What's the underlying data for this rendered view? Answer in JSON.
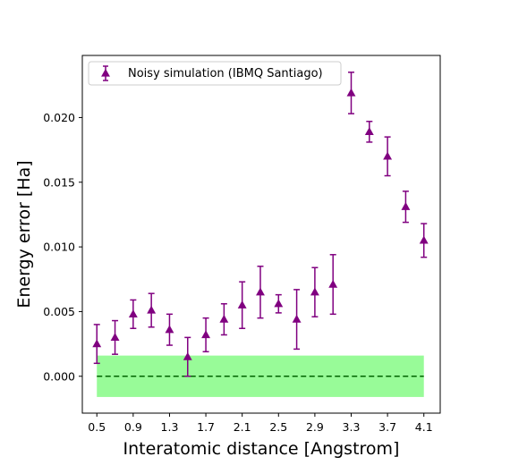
{
  "chart_data": {
    "type": "scatter",
    "xlabel": "Interatomic distance [Angstrom]",
    "ylabel": "Energy error [Ha]",
    "xlim": [
      0.34,
      4.28
    ],
    "ylim": [
      -0.00285,
      0.0248
    ],
    "xticks": [
      "0.5",
      "0.9",
      "1.3",
      "1.7",
      "2.1",
      "2.5",
      "2.9",
      "3.3",
      "3.7",
      "4.1"
    ],
    "yticks": [
      "0.000",
      "0.005",
      "0.010",
      "0.015",
      "0.020"
    ],
    "grid": false,
    "legend": {
      "position": "top-left",
      "entries": [
        "Noisy simulation (IBMQ Santiago)"
      ]
    },
    "colors": {
      "series": "#800080",
      "band": "#98fb98",
      "baseline": "#006400"
    },
    "band": {
      "x": [
        0.5,
        4.1
      ],
      "y": [
        -0.0016,
        0.0016
      ]
    },
    "baseline": {
      "y": 0.0,
      "style": "dashed",
      "x": [
        0.5,
        4.1
      ]
    },
    "series": [
      {
        "name": "Noisy simulation (IBMQ Santiago)",
        "marker": "triangle-up",
        "x": [
          0.5,
          0.7,
          0.9,
          1.1,
          1.3,
          1.5,
          1.7,
          1.9,
          2.1,
          2.3,
          2.5,
          2.7,
          2.9,
          3.1,
          3.3,
          3.5,
          3.7,
          3.9,
          4.1
        ],
        "y": [
          0.0025,
          0.003,
          0.0048,
          0.0051,
          0.0036,
          0.0015,
          0.0032,
          0.0044,
          0.0055,
          0.0065,
          0.0056,
          0.0044,
          0.0065,
          0.0071,
          0.0219,
          0.0189,
          0.017,
          0.0131,
          0.0105
        ],
        "yerr": [
          0.0015,
          0.0013,
          0.0011,
          0.0013,
          0.0012,
          0.0015,
          0.0013,
          0.0012,
          0.0018,
          0.002,
          0.0007,
          0.0023,
          0.0019,
          0.0023,
          0.0016,
          0.0008,
          0.0015,
          0.0012,
          0.0013
        ]
      }
    ]
  }
}
